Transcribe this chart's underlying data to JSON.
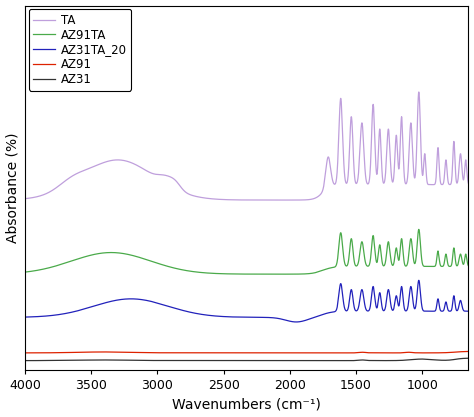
{
  "xlabel": "Wavenumbers (cm⁻¹)",
  "ylabel": "Absorbance (%)",
  "xlim": [
    650,
    4000
  ],
  "x_reverse": true,
  "xticks": [
    4000,
    3500,
    3000,
    2500,
    2000,
    1500,
    1000
  ],
  "colors": {
    "TA": "#bf9fdc",
    "AZ91TA": "#4aaa4a",
    "AZ31TA_20": "#2222bb",
    "AZ91": "#dd2200",
    "AZ31": "#333333"
  },
  "legend_labels": [
    "TA",
    "AZ91TA",
    "AZ31TA_20",
    "AZ91",
    "AZ31"
  ],
  "offsets": {
    "TA": 0.52,
    "AZ91TA": 0.28,
    "AZ31TA_20": 0.14,
    "AZ91": 0.025,
    "AZ31": 0.0
  },
  "ylim": [
    -0.03,
    1.15
  ]
}
